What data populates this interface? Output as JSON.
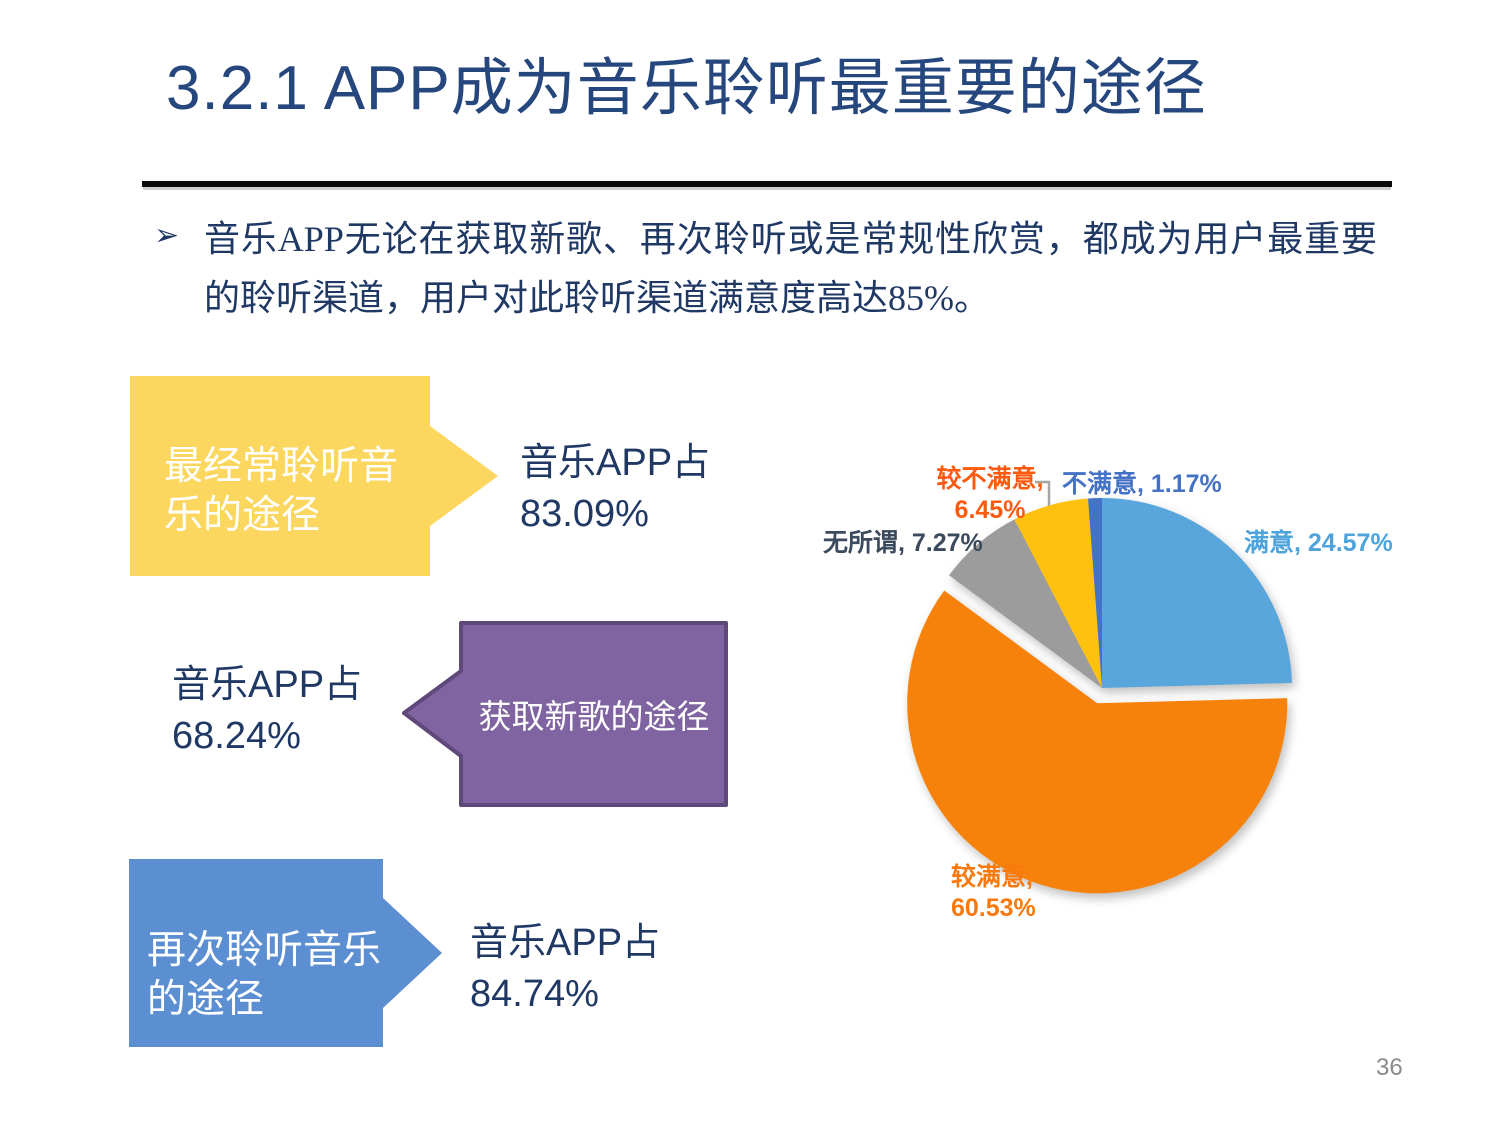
{
  "slide": {
    "title": "3.2.1 APP成为音乐聆听最重要的途径",
    "bullet_marker": "➢",
    "bullet": "音乐APP无论在获取新歌、再次聆听或是常规性欣赏，都成为用户最重要的聆听渠道，用户对此聆听渠道满意度高达85%。",
    "page_number": "36"
  },
  "callouts": [
    {
      "label": "最经常聆听音乐的途径",
      "value_line1": "音乐APP占",
      "value_line2": "83.09%",
      "fill": "#FBD75F",
      "direction": "right"
    },
    {
      "label": "获取新歌的途径",
      "value_line1": "音乐APP占",
      "value_line2": "68.24%",
      "fill": "#8064A2",
      "border": "#5F497A",
      "direction": "left"
    },
    {
      "label": "再次聆听音乐的途径",
      "value_line1": "音乐APP占",
      "value_line2": "84.74%",
      "fill": "#5B8FD1",
      "direction": "right"
    }
  ],
  "chart_data": {
    "type": "pie",
    "title": "",
    "categories": [
      "满意",
      "较满意",
      "无所谓",
      "较不满意",
      "不满意"
    ],
    "slugs": [
      "manyi",
      "jiao-manyi",
      "wusuowei",
      "jiao-bumanyi",
      "bumanyi"
    ],
    "values": [
      24.57,
      60.53,
      7.27,
      6.45,
      1.17
    ],
    "colors": [
      "#58A6DC",
      "#F6820B",
      "#9C9C9C",
      "#FEC10D",
      "#4472C4"
    ],
    "exploded_index": 1,
    "explode_distance": 16,
    "start_angle_deg": 0,
    "direction": "clockwise",
    "legend": "none",
    "data_labels": {
      "manyi": "满意, 24.57%",
      "jiao_manyi_line1": "较满意,",
      "jiao_manyi_line2": "60.53%",
      "wusuowei": "无所谓, 7.27%",
      "jiao_bumanyi_line1": "较不满意,",
      "jiao_bumanyi_line2": "6.45%",
      "bumanyi": "不满意, 1.17%"
    },
    "label_colors": {
      "manyi": "#4FA3DB",
      "jiao_manyi": "#F8790D",
      "wusuowei": "#3C4A5E",
      "jiao_bumanyi": "#FC5A0E",
      "bumanyi": "#4472C4"
    }
  }
}
